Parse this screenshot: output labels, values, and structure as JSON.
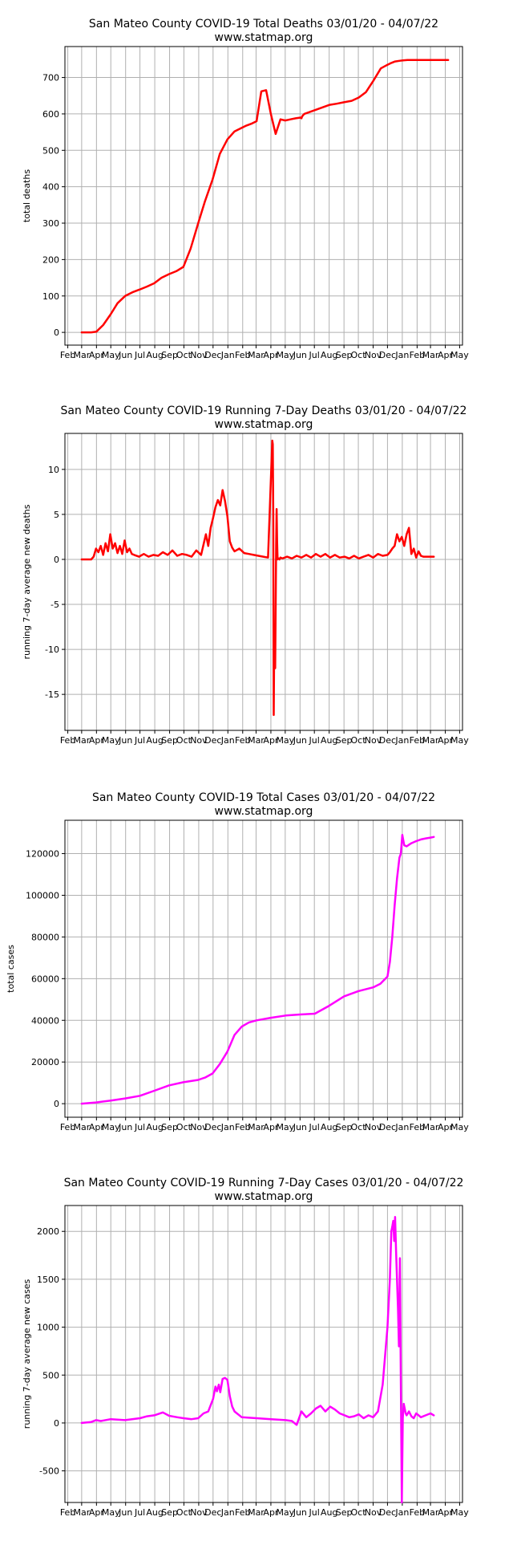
{
  "month_ticks": [
    "Feb",
    "Mar",
    "Apr",
    "May",
    "Jun",
    "Jul",
    "Aug",
    "Sep",
    "Oct",
    "Nov",
    "Dec",
    "Jan",
    "Feb",
    "Mar",
    "Apr",
    "May",
    "Jun",
    "Jul",
    "Aug",
    "Sep",
    "Oct",
    "Nov",
    "Dec",
    "Jan",
    "Feb",
    "Mar",
    "Apr",
    "May"
  ],
  "chart_data": [
    {
      "type": "line",
      "title": "San Mateo County COVID-19 Total Deaths 03/01/20 - 04/07/22",
      "subtitle": "www.statmap.org",
      "xlabel": "",
      "ylabel": "total deaths",
      "ylim": [
        -35,
        785
      ],
      "yticks": [
        0,
        100,
        200,
        300,
        400,
        500,
        600,
        700
      ],
      "color": "#ff0000",
      "grid": true,
      "series": [
        {
          "x": [
            0,
            20,
            31,
            45,
            61,
            75,
            91,
            106,
            122,
            137,
            152,
            167,
            183,
            198,
            213,
            228,
            244,
            258,
            274,
            289,
            305,
            320,
            335,
            345,
            355,
            366,
            376,
            386,
            396,
            406,
            416,
            426,
            437,
            448,
            458,
            460,
            461,
            463,
            466,
            483,
            504,
            519,
            534,
            549,
            565,
            580,
            595,
            610,
            626,
            640,
            648,
            656,
            666,
            672,
            682,
            692,
            701,
            710,
            715,
            725,
            737,
            749,
            767
          ],
          "y": [
            0,
            0,
            2,
            20,
            50,
            80,
            100,
            110,
            118,
            126,
            135,
            150,
            160,
            168,
            180,
            230,
            300,
            360,
            420,
            490,
            530,
            552,
            562,
            568,
            573,
            580,
            662,
            665,
            600,
            545,
            585,
            582,
            585,
            588,
            590,
            588,
            592,
            596,
            600,
            608,
            618,
            625,
            628,
            632,
            636,
            645,
            660,
            690,
            725,
            735,
            740,
            744,
            746,
            747,
            748,
            748,
            748,
            748,
            748,
            748,
            748,
            748,
            748
          ],
          "name": ""
        }
      ]
    },
    {
      "type": "line",
      "title": "San Mateo County COVID-19 Running 7-Day Deaths 03/01/20 - 04/07/22",
      "subtitle": "www.statmap.org",
      "xlabel": "",
      "ylabel": "running 7-day average new deaths",
      "ylim": [
        -19,
        14
      ],
      "yticks": [
        10,
        5,
        0,
        -5,
        -10,
        -15
      ],
      "color": "#ff0000",
      "grid": true,
      "series": [
        {
          "x": [
            0,
            20,
            25,
            30,
            35,
            40,
            45,
            50,
            55,
            60,
            65,
            70,
            75,
            80,
            85,
            90,
            95,
            100,
            105,
            110,
            120,
            130,
            140,
            150,
            160,
            170,
            180,
            190,
            200,
            210,
            220,
            230,
            240,
            250,
            260,
            265,
            270,
            275,
            280,
            285,
            290,
            295,
            300,
            305,
            310,
            315,
            320,
            330,
            340,
            350,
            360,
            370,
            380,
            390,
            399,
            400,
            401,
            402,
            403,
            405,
            407,
            408,
            409,
            410,
            412,
            414,
            416,
            420,
            430,
            440,
            450,
            460,
            470,
            480,
            490,
            500,
            510,
            520,
            530,
            540,
            550,
            560,
            570,
            580,
            590,
            600,
            610,
            620,
            630,
            640,
            645,
            650,
            655,
            660,
            665,
            670,
            675,
            680,
            685,
            690,
            695,
            700,
            705,
            710,
            715,
            720,
            725,
            730,
            735,
            737
          ],
          "y": [
            0,
            0,
            0.3,
            1.2,
            0.8,
            1.5,
            0.5,
            1.8,
            0.9,
            2.8,
            1.2,
            1.8,
            0.7,
            1.5,
            0.6,
            2.1,
            0.8,
            1.2,
            0.6,
            0.5,
            0.3,
            0.6,
            0.3,
            0.5,
            0.4,
            0.8,
            0.5,
            1.0,
            0.4,
            0.6,
            0.5,
            0.3,
            1.0,
            0.5,
            2.8,
            1.5,
            3.5,
            4.6,
            5.8,
            6.6,
            6.0,
            7.7,
            6.5,
            4.8,
            2.0,
            1.3,
            0.9,
            1.2,
            0.7,
            0.6,
            0.5,
            0.4,
            0.3,
            0.2,
            13.2,
            12.8,
            5.0,
            -17.3,
            -9.0,
            -12.1,
            1.5,
            5.6,
            2.0,
            0.0,
            0.1,
            0.0,
            0.2,
            0.1,
            0.3,
            0.1,
            0.4,
            0.2,
            0.5,
            0.2,
            0.6,
            0.3,
            0.6,
            0.2,
            0.5,
            0.2,
            0.3,
            0.1,
            0.4,
            0.1,
            0.3,
            0.5,
            0.2,
            0.6,
            0.4,
            0.5,
            0.8,
            1.2,
            1.5,
            2.8,
            2.0,
            2.5,
            1.5,
            2.8,
            3.5,
            0.6,
            1.2,
            0.2,
            0.9,
            0.4,
            0.3,
            0.3,
            0.3,
            0.3,
            0.3,
            0.3
          ],
          "name": ""
        }
      ]
    },
    {
      "type": "line",
      "title": "San Mateo County COVID-19 Total Cases 03/01/20 - 04/07/22",
      "subtitle": "www.statmap.org",
      "xlabel": "",
      "ylabel": "total cases",
      "ylim": [
        -6500,
        136000
      ],
      "yticks": [
        0,
        20000,
        40000,
        60000,
        80000,
        100000,
        120000
      ],
      "color": "#ff00ff",
      "grid": true,
      "series": [
        {
          "x": [
            0,
            30,
            61,
            91,
            122,
            152,
            183,
            213,
            244,
            259,
            274,
            289,
            305,
            320,
            335,
            350,
            366,
            396,
            427,
            457,
            488,
            518,
            549,
            579,
            610,
            625,
            640,
            645,
            650,
            655,
            660,
            665,
            668,
            671,
            675,
            680,
            690,
            700,
            710,
            720,
            730,
            737
          ],
          "y": [
            0,
            600,
            1500,
            2500,
            3800,
            6200,
            8800,
            10300,
            11400,
            12600,
            14500,
            19000,
            25000,
            33000,
            37000,
            39000,
            40000,
            41200,
            42300,
            42800,
            43200,
            47000,
            51500,
            54000,
            55800,
            57500,
            61000,
            68000,
            80000,
            95000,
            108000,
            118000,
            120000,
            129000,
            124000,
            123500,
            125000,
            126000,
            126800,
            127300,
            127700,
            128000
          ],
          "name": ""
        }
      ]
    },
    {
      "type": "line",
      "title": "San Mateo County COVID-19 Running 7-Day Cases 03/01/20 - 04/07/22",
      "subtitle": "www.statmap.org",
      "xlabel": "",
      "ylabel": "running 7-day average new cases",
      "ylim": [
        -830,
        2270
      ],
      "yticks": [
        2000,
        1500,
        1000,
        500,
        0,
        -500
      ],
      "color": "#ff00ff",
      "grid": true,
      "series": [
        {
          "x": [
            0,
            20,
            30,
            40,
            61,
            91,
            122,
            137,
            152,
            170,
            183,
            200,
            213,
            230,
            244,
            255,
            265,
            275,
            280,
            283,
            287,
            290,
            295,
            300,
            305,
            310,
            315,
            320,
            335,
            350,
            366,
            396,
            427,
            440,
            450,
            460,
            470,
            480,
            490,
            500,
            510,
            520,
            530,
            540,
            550,
            560,
            570,
            580,
            590,
            600,
            610,
            620,
            630,
            640,
            645,
            648,
            650,
            652,
            654,
            656,
            658,
            660,
            662,
            664,
            666,
            668,
            670,
            672,
            674,
            676,
            678,
            680,
            685,
            690,
            695,
            700,
            705,
            710,
            720,
            730,
            737
          ],
          "y": [
            0,
            10,
            30,
            20,
            40,
            30,
            50,
            70,
            80,
            110,
            75,
            60,
            50,
            40,
            50,
            100,
            120,
            250,
            380,
            330,
            400,
            320,
            460,
            470,
            450,
            280,
            170,
            120,
            60,
            55,
            50,
            40,
            30,
            20,
            -20,
            120,
            60,
            100,
            150,
            180,
            120,
            170,
            140,
            100,
            80,
            60,
            70,
            90,
            50,
            80,
            60,
            120,
            400,
            1000,
            1500,
            2000,
            2050,
            2110,
            1900,
            2150,
            1800,
            1500,
            1200,
            800,
            1720,
            400,
            -830,
            50,
            200,
            150,
            100,
            80,
            120,
            70,
            50,
            100,
            80,
            60,
            80,
            100,
            80
          ],
          "name": ""
        }
      ]
    }
  ]
}
